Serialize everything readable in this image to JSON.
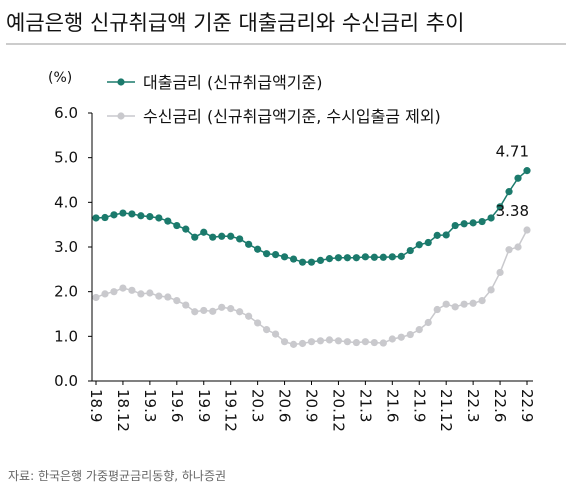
{
  "chart_data": {
    "type": "line",
    "title": "예금은행 신규취급액 기준 대출금리와 수신금리 추이",
    "y_label": "(%)",
    "source": "자료: 한국은행 가중평균금리동향, 하나증권",
    "categories": [
      "18.9",
      null,
      null,
      "18.12",
      null,
      null,
      "19.3",
      null,
      null,
      "19.6",
      null,
      null,
      "19.9",
      null,
      null,
      "19.12",
      null,
      null,
      "20.3",
      null,
      null,
      "20.6",
      null,
      null,
      "20.9",
      null,
      null,
      "20.12",
      null,
      null,
      "21.3",
      null,
      null,
      "21.6",
      null,
      null,
      "21.9",
      null,
      null,
      "21.12",
      null,
      null,
      "22.3",
      null,
      null,
      "22.6",
      null,
      null,
      "22.9"
    ],
    "series": [
      {
        "name": "대출금리 (신규취급액기준)",
        "color": "#1b7a6c",
        "values": [
          3.65,
          3.66,
          3.72,
          3.76,
          3.74,
          3.7,
          3.68,
          3.65,
          3.58,
          3.48,
          3.4,
          3.22,
          3.33,
          3.22,
          3.24,
          3.24,
          3.18,
          3.06,
          2.95,
          2.85,
          2.83,
          2.78,
          2.73,
          2.66,
          2.66,
          2.7,
          2.74,
          2.76,
          2.76,
          2.76,
          2.78,
          2.77,
          2.77,
          2.78,
          2.79,
          2.92,
          3.05,
          3.1,
          3.26,
          3.27,
          3.48,
          3.52,
          3.54,
          3.57,
          3.65,
          3.9,
          4.24,
          4.54,
          4.71
        ]
      },
      {
        "name": "수신금리 (신규취급액기준, 수시입출금 제외)",
        "color": "#c9c9cd",
        "values": [
          1.87,
          1.95,
          2.0,
          2.08,
          2.03,
          1.95,
          1.97,
          1.9,
          1.88,
          1.8,
          1.7,
          1.55,
          1.58,
          1.56,
          1.65,
          1.62,
          1.55,
          1.45,
          1.3,
          1.15,
          1.05,
          0.88,
          0.82,
          0.84,
          0.88,
          0.9,
          0.92,
          0.9,
          0.88,
          0.86,
          0.88,
          0.86,
          0.85,
          0.94,
          0.98,
          1.04,
          1.15,
          1.31,
          1.6,
          1.72,
          1.66,
          1.72,
          1.74,
          1.8,
          2.04,
          2.43,
          2.94,
          3.0,
          3.38
        ]
      }
    ],
    "ylim": [
      0,
      6
    ],
    "yticks": [
      {
        "value": 0,
        "label": "0.0"
      },
      {
        "value": 1,
        "label": "1.0"
      },
      {
        "value": 2,
        "label": "2.0"
      },
      {
        "value": 3,
        "label": "3.0"
      },
      {
        "value": 4,
        "label": "4.0"
      },
      {
        "value": 5,
        "label": "5.0"
      },
      {
        "value": 6,
        "label": "6.0"
      }
    ],
    "grid": false,
    "legend": "top-left"
  }
}
